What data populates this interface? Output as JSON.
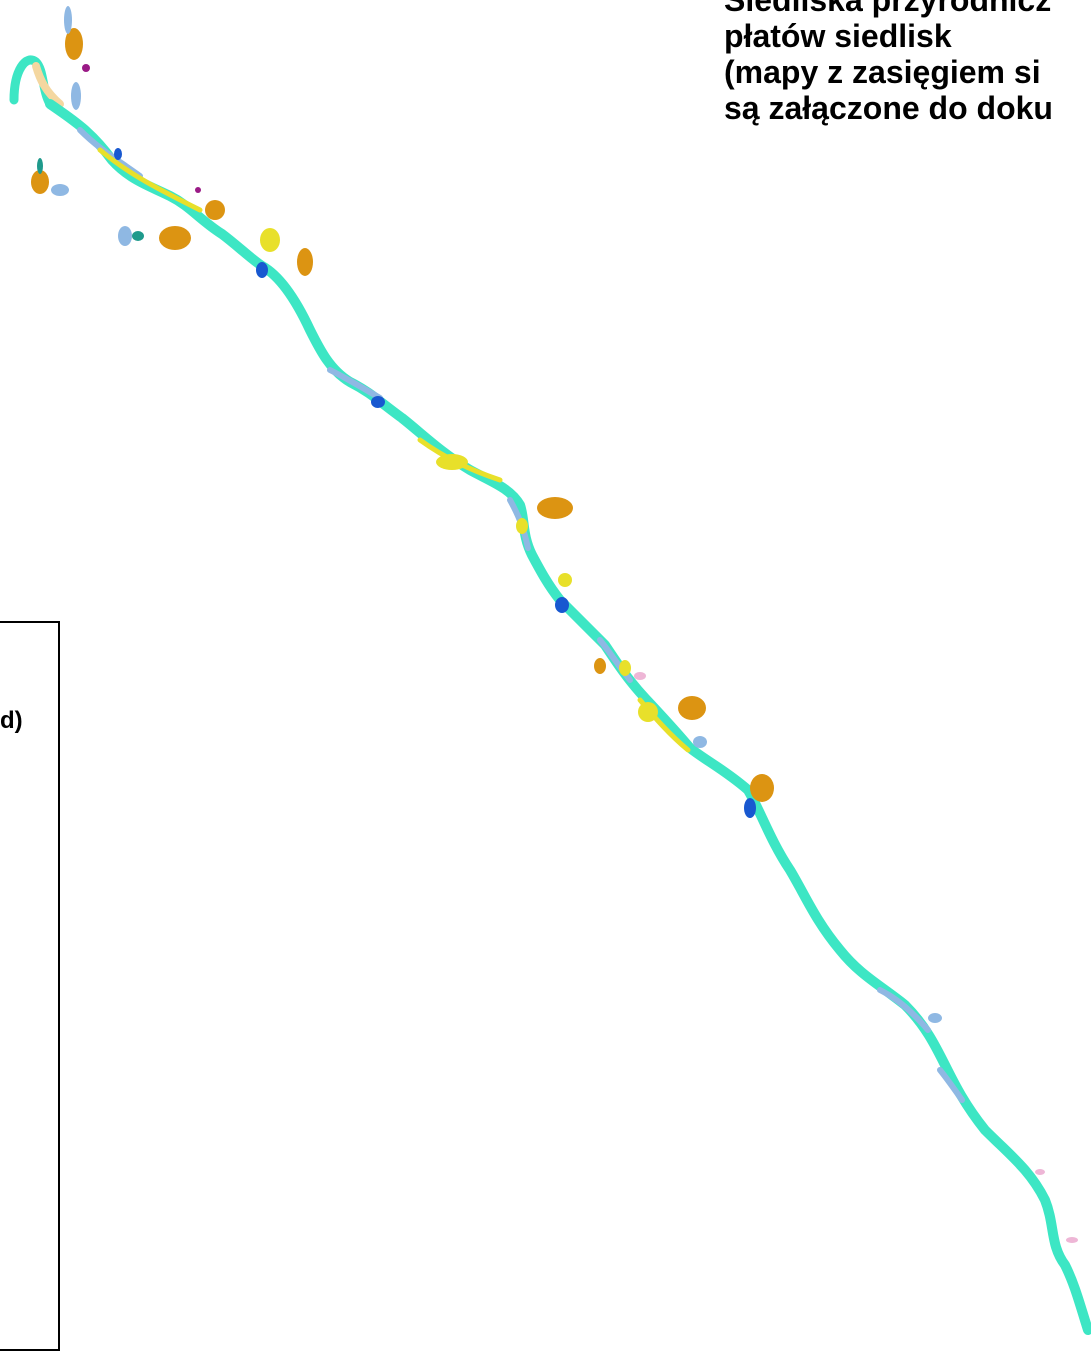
{
  "title": {
    "lines": [
      "Siedliska przyrodnicz",
      "płatów siedlisk",
      "(mapy z zasięgiem si",
      "są załączone do doku"
    ]
  },
  "legend": {
    "visible_text": "d)"
  },
  "colors": {
    "background": "#ffffff",
    "river_main": "#3de6c4",
    "habitat_light_blue": "#8fb8e3",
    "habitat_yellow": "#e8e02a",
    "habitat_orange": "#dc9412",
    "habitat_blue": "#1858d0",
    "habitat_teal": "#1f9a8c",
    "habitat_pink": "#eeb6d6",
    "habitat_beige": "#f4d7a0",
    "habitat_purple": "#9a1a86"
  }
}
